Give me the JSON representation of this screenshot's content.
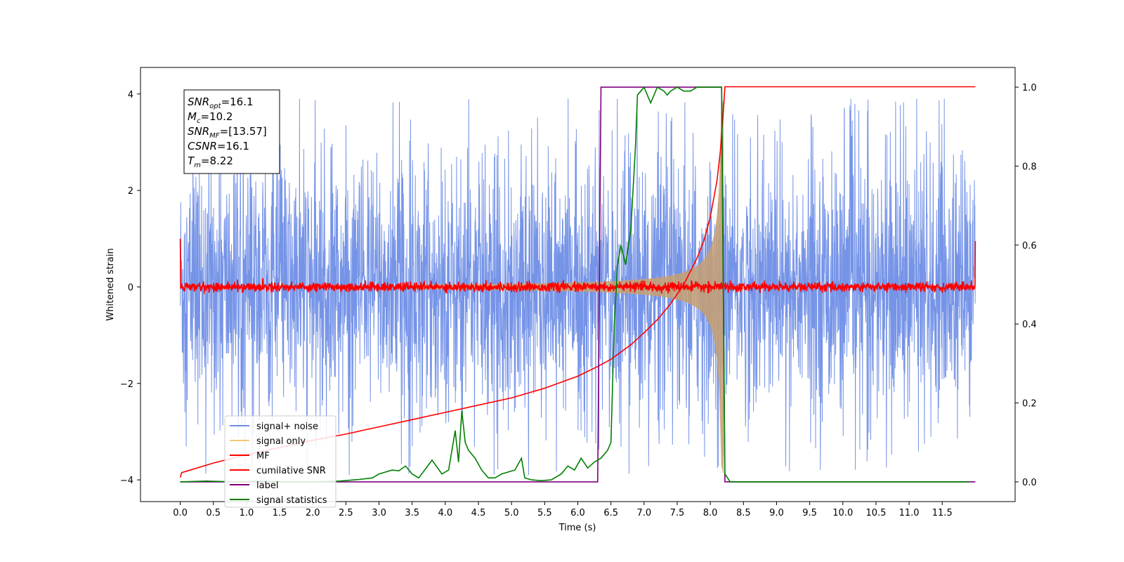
{
  "chart_data": {
    "type": "line",
    "xlabel": "Time (s)",
    "ylabel": "Whitened strain",
    "xlim": [
      -0.6,
      12.6
    ],
    "ylim": [
      -4.45,
      4.55
    ],
    "y2lim": [
      -0.05,
      1.05
    ],
    "x_ticks": [
      "0.0",
      "0.5",
      "1.0",
      "1.5",
      "2.0",
      "2.5",
      "3.0",
      "3.5",
      "4.0",
      "4.5",
      "5.0",
      "5.5",
      "6.0",
      "6.5",
      "7.0",
      "7.5",
      "8.0",
      "8.5",
      "9.0",
      "9.5",
      "10.0",
      "10.5",
      "11.0",
      "11.5"
    ],
    "y_ticks": [
      -4,
      -2,
      0,
      2,
      4
    ],
    "y_tick_labels": [
      "−4",
      "−2",
      "0",
      "2",
      "4"
    ],
    "y2_ticks": [
      "0.0",
      "0.2",
      "0.4",
      "0.6",
      "0.8",
      "1.0"
    ],
    "legend_position": "lower-left",
    "annotation": {
      "lines": [
        {
          "base": "SNR",
          "sub": "opt",
          "rest": "=16.1"
        },
        {
          "base": "M",
          "sub": "c",
          "rest": "=10.2"
        },
        {
          "base": "SNR",
          "sub": "MF",
          "rest": "=[13.57]"
        },
        {
          "base": "CSNR",
          "sub": "",
          "rest": "=16.1"
        },
        {
          "base": "T",
          "sub": "m",
          "rest": "=8.22"
        }
      ]
    },
    "series": [
      {
        "name": "signal+ noise",
        "axis": "left",
        "color": "#6f8ee6",
        "noise": {
          "x_start": 0.0,
          "x_end": 12.0,
          "amplitude": 2.8,
          "peak": 3.9
        }
      },
      {
        "name": "signal only",
        "axis": "left",
        "color": "#c8a070",
        "legend_color": "#f5c978",
        "chirp_envelope": {
          "x_start": 3.5,
          "merger": 8.2,
          "max_amplitude": 3.9
        }
      },
      {
        "name": "MF",
        "axis": "left",
        "color": "#ff0000",
        "noise": {
          "x_start": 0.0,
          "x_end": 12.0,
          "amplitude": 0.16,
          "peak": 0.25
        },
        "endpoints": [
          [
            0.0,
            1.0
          ],
          [
            12.0,
            0.95
          ]
        ]
      },
      {
        "name": "cumilative SNR",
        "axis": "left",
        "color": "#ff0000",
        "x": [
          0.0,
          0.02,
          0.5,
          1.0,
          1.5,
          2.0,
          2.5,
          3.0,
          3.5,
          4.0,
          4.5,
          5.0,
          5.5,
          6.0,
          6.3,
          6.5,
          6.8,
          7.0,
          7.2,
          7.4,
          7.6,
          7.8,
          7.9,
          8.0,
          8.1,
          8.15,
          8.2,
          8.22,
          12.0
        ],
        "y": [
          -3.95,
          -3.85,
          -3.65,
          -3.48,
          -3.33,
          -3.18,
          -3.05,
          -2.9,
          -2.75,
          -2.6,
          -2.45,
          -2.3,
          -2.1,
          -1.85,
          -1.65,
          -1.5,
          -1.2,
          -0.95,
          -0.68,
          -0.35,
          0.05,
          0.6,
          0.95,
          1.45,
          2.2,
          2.8,
          3.7,
          4.15,
          4.15
        ]
      },
      {
        "name": "label",
        "axis": "right",
        "color": "#800080",
        "x": [
          0.0,
          6.3,
          6.35,
          8.17,
          8.22,
          12.0
        ],
        "y": [
          0.0,
          0.0,
          1.0,
          1.0,
          0.0,
          0.0
        ]
      },
      {
        "name": "signal statistics",
        "axis": "right",
        "color": "#008000",
        "x": [
          0.0,
          0.4,
          0.8,
          1.2,
          1.6,
          2.0,
          2.4,
          2.7,
          2.9,
          3.0,
          3.1,
          3.2,
          3.3,
          3.4,
          3.5,
          3.6,
          3.8,
          3.95,
          4.05,
          4.15,
          4.2,
          4.25,
          4.3,
          4.35,
          4.45,
          4.55,
          4.65,
          4.75,
          4.85,
          4.95,
          5.05,
          5.15,
          5.2,
          5.3,
          5.45,
          5.6,
          5.75,
          5.85,
          5.95,
          6.05,
          6.15,
          6.25,
          6.35,
          6.45,
          6.5,
          6.55,
          6.6,
          6.65,
          6.72,
          6.8,
          6.87,
          6.9,
          6.95,
          7.0,
          7.1,
          7.2,
          7.3,
          7.35,
          7.4,
          7.5,
          7.6,
          7.7,
          7.8,
          7.9,
          8.0,
          8.1,
          8.17,
          8.22,
          8.3,
          8.5,
          9.0,
          10.0,
          11.0,
          11.9
        ],
        "y": [
          0.0,
          0.002,
          0.0,
          0.002,
          0.0,
          0.0,
          0.002,
          0.006,
          0.01,
          0.02,
          0.025,
          0.03,
          0.028,
          0.04,
          0.02,
          0.01,
          0.055,
          0.02,
          0.03,
          0.13,
          0.05,
          0.18,
          0.1,
          0.08,
          0.06,
          0.03,
          0.01,
          0.01,
          0.02,
          0.025,
          0.03,
          0.06,
          0.01,
          0.005,
          0.003,
          0.005,
          0.02,
          0.04,
          0.03,
          0.06,
          0.035,
          0.05,
          0.06,
          0.08,
          0.1,
          0.4,
          0.55,
          0.6,
          0.55,
          0.64,
          0.85,
          0.98,
          0.99,
          1.0,
          0.96,
          1.0,
          0.99,
          0.98,
          0.99,
          1.0,
          0.99,
          0.99,
          1.0,
          1.0,
          1.0,
          1.0,
          1.0,
          0.02,
          0.0,
          0.0,
          0.0,
          0.0,
          0.0,
          0.0
        ]
      }
    ]
  }
}
